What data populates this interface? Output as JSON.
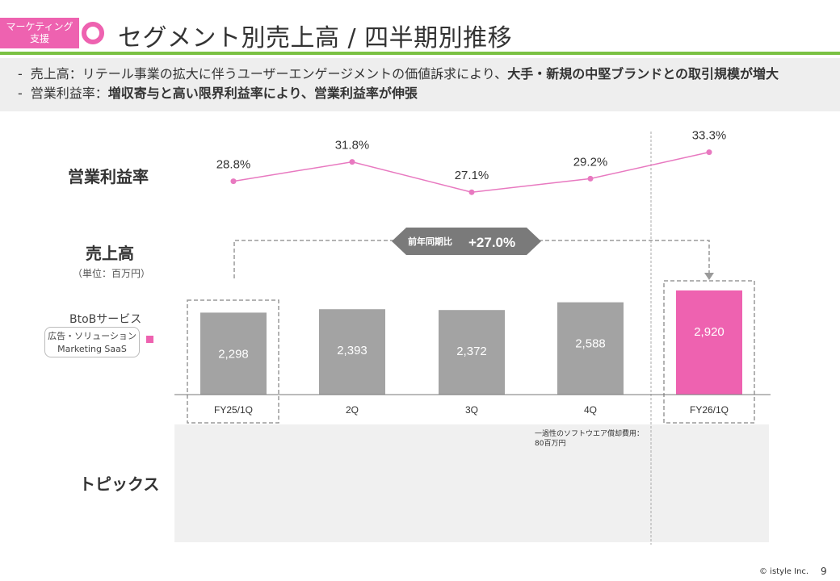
{
  "header": {
    "badge_line1": "マーケティング",
    "badge_line2": "支援",
    "title": "セグメント別売上高 / 四半期別推移"
  },
  "summary": {
    "line1_prefix": "売上高：リテール事業の拡大に伴うユーザーエンゲージメントの価値訴求により、",
    "line1_bold": "大手・新規の中堅ブランドとの取引規模が増大",
    "line2_prefix": "営業利益率：",
    "line2_bold": "増収寄与と高い限界利益率により、営業利益率が伸張"
  },
  "labels": {
    "operating_margin": "営業利益率",
    "sales": "売上高",
    "unit": "（単位：百万円）",
    "btob": "BtoBサービス",
    "service_line1": "広告・ソリューション",
    "service_line2": "Marketing SaaS",
    "topics": "トピックス",
    "topic_note_line1": "一過性のソフトウエア償却費用：",
    "topic_note_line2": "80百万円",
    "yoy_label": "前年同期比",
    "yoy_value": "+27.0%"
  },
  "colors": {
    "pink": "#ee62b0",
    "gray_bar": "#a3a3a3",
    "green": "#7ac143",
    "line": "#e879c0"
  },
  "chart_data": [
    {
      "type": "line",
      "title": "営業利益率",
      "categories": [
        "FY25/1Q",
        "2Q",
        "3Q",
        "4Q",
        "FY26/1Q"
      ],
      "values": [
        28.8,
        31.8,
        27.1,
        29.2,
        33.3
      ],
      "value_labels": [
        "28.8%",
        "31.8%",
        "27.1%",
        "29.2%",
        "33.3%"
      ],
      "unit": "%"
    },
    {
      "type": "bar",
      "title": "売上高",
      "ylabel": "（単位：百万円）",
      "categories": [
        "FY25/1Q",
        "2Q",
        "3Q",
        "4Q",
        "FY26/1Q"
      ],
      "values": [
        2298,
        2393,
        2372,
        2588,
        2920
      ],
      "value_labels": [
        "2,298",
        "2,393",
        "2,372",
        "2,588",
        "2,920"
      ],
      "highlight_index": 4,
      "series_name": "広告・ソリューション Marketing SaaS",
      "annotation": "前年同期比 +27.0%"
    }
  ],
  "footer": {
    "copyright": "© istyle Inc.",
    "page": "9"
  }
}
